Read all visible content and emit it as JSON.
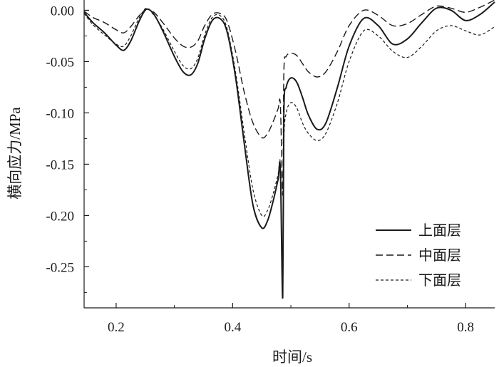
{
  "chart_data": {
    "type": "line",
    "title": "",
    "xlabel": "时间/s",
    "ylabel": "横向应力/MPa",
    "xlim": [
      0.145,
      0.85
    ],
    "ylim": [
      -0.29,
      0.01
    ],
    "x_ticks": [
      0.2,
      0.4,
      0.6,
      0.8
    ],
    "x_tick_labels": [
      "0.2",
      "0.4",
      "0.6",
      "0.8"
    ],
    "y_ticks": [
      0.0,
      -0.05,
      -0.1,
      -0.15,
      -0.2,
      -0.25
    ],
    "y_tick_labels": [
      "0.00",
      "-0.05",
      "-0.10",
      "-0.15",
      "-0.20",
      "-0.25"
    ],
    "grid": false,
    "legend_position": "bottom-right",
    "series": [
      {
        "name": "上面层",
        "style": "solid",
        "x": [
          0.145,
          0.16,
          0.18,
          0.2,
          0.213,
          0.225,
          0.24,
          0.252,
          0.265,
          0.28,
          0.3,
          0.315,
          0.328,
          0.34,
          0.352,
          0.365,
          0.378,
          0.39,
          0.405,
          0.42,
          0.435,
          0.45,
          0.46,
          0.47,
          0.478,
          0.482,
          0.486,
          0.488,
          0.492,
          0.5,
          0.51,
          0.52,
          0.53,
          0.545,
          0.56,
          0.58,
          0.6,
          0.625,
          0.65,
          0.675,
          0.7,
          0.725,
          0.75,
          0.775,
          0.8,
          0.825,
          0.85
        ],
        "y": [
          -0.002,
          -0.012,
          -0.022,
          -0.034,
          -0.039,
          -0.03,
          -0.01,
          0.001,
          -0.004,
          -0.02,
          -0.045,
          -0.06,
          -0.063,
          -0.052,
          -0.028,
          -0.01,
          -0.008,
          -0.02,
          -0.065,
          -0.13,
          -0.19,
          -0.212,
          -0.205,
          -0.185,
          -0.165,
          -0.155,
          -0.28,
          -0.1,
          -0.075,
          -0.066,
          -0.07,
          -0.085,
          -0.102,
          -0.116,
          -0.11,
          -0.075,
          -0.035,
          -0.008,
          -0.015,
          -0.033,
          -0.028,
          -0.012,
          0.002,
          0.0,
          -0.01,
          -0.004,
          0.008
        ]
      },
      {
        "name": "中面层",
        "style": "dashed",
        "x": [
          0.145,
          0.16,
          0.18,
          0.2,
          0.213,
          0.225,
          0.24,
          0.252,
          0.265,
          0.28,
          0.3,
          0.315,
          0.328,
          0.34,
          0.352,
          0.365,
          0.378,
          0.39,
          0.405,
          0.42,
          0.435,
          0.45,
          0.46,
          0.47,
          0.478,
          0.482,
          0.486,
          0.488,
          0.492,
          0.5,
          0.51,
          0.52,
          0.53,
          0.545,
          0.56,
          0.58,
          0.6,
          0.625,
          0.65,
          0.675,
          0.7,
          0.725,
          0.75,
          0.775,
          0.8,
          0.825,
          0.85
        ],
        "y": [
          -0.001,
          -0.007,
          -0.012,
          -0.019,
          -0.022,
          -0.016,
          -0.005,
          0.001,
          -0.002,
          -0.012,
          -0.027,
          -0.035,
          -0.036,
          -0.03,
          -0.015,
          -0.004,
          -0.003,
          -0.01,
          -0.04,
          -0.08,
          -0.11,
          -0.124,
          -0.12,
          -0.108,
          -0.096,
          -0.092,
          -0.18,
          -0.06,
          -0.045,
          -0.042,
          -0.044,
          -0.052,
          -0.06,
          -0.065,
          -0.06,
          -0.04,
          -0.015,
          0.0,
          -0.005,
          -0.015,
          -0.013,
          -0.004,
          0.004,
          0.002,
          -0.002,
          0.003,
          0.01
        ]
      },
      {
        "name": "下面层",
        "style": "short-dashed",
        "x": [
          0.145,
          0.16,
          0.18,
          0.2,
          0.213,
          0.225,
          0.24,
          0.252,
          0.265,
          0.28,
          0.3,
          0.315,
          0.328,
          0.34,
          0.352,
          0.365,
          0.378,
          0.39,
          0.405,
          0.42,
          0.435,
          0.45,
          0.46,
          0.47,
          0.478,
          0.482,
          0.486,
          0.488,
          0.492,
          0.5,
          0.51,
          0.52,
          0.53,
          0.545,
          0.56,
          0.58,
          0.6,
          0.625,
          0.65,
          0.675,
          0.7,
          0.725,
          0.75,
          0.775,
          0.8,
          0.825,
          0.85
        ],
        "y": [
          -0.003,
          -0.014,
          -0.024,
          -0.033,
          -0.035,
          -0.025,
          -0.007,
          0.002,
          -0.005,
          -0.018,
          -0.04,
          -0.054,
          -0.057,
          -0.047,
          -0.024,
          -0.007,
          -0.005,
          -0.017,
          -0.06,
          -0.12,
          -0.175,
          -0.2,
          -0.195,
          -0.178,
          -0.16,
          -0.152,
          -0.268,
          -0.13,
          -0.1,
          -0.09,
          -0.095,
          -0.11,
          -0.12,
          -0.127,
          -0.12,
          -0.09,
          -0.05,
          -0.02,
          -0.025,
          -0.04,
          -0.046,
          -0.035,
          -0.02,
          -0.015,
          -0.02,
          -0.024,
          -0.016
        ]
      }
    ]
  }
}
